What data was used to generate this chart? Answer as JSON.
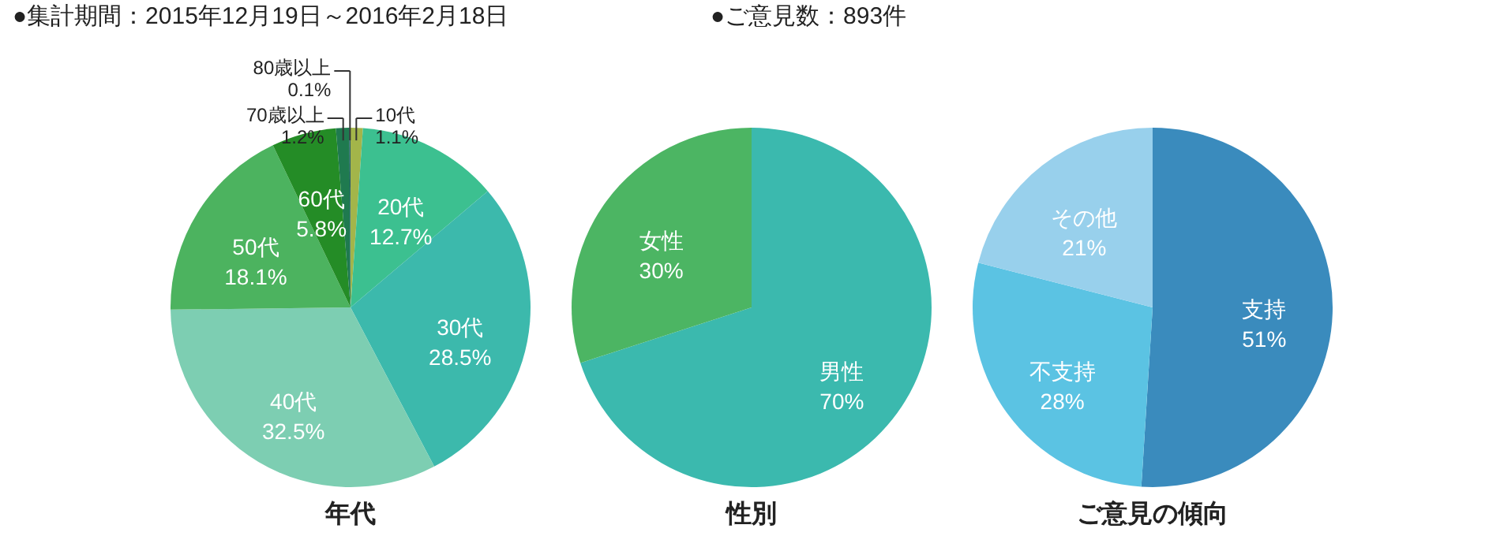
{
  "chart_data": [
    {
      "type": "pie",
      "title": "年代",
      "annotations": [
        "●集計期間：2015年12月19日～2016年2月18日",
        "●ご意見数：893件"
      ],
      "categories": [
        "10代",
        "20代",
        "30代",
        "40代",
        "50代",
        "60代",
        "70歳以上",
        "80歳以上"
      ],
      "values": [
        1.1,
        12.7,
        28.5,
        32.5,
        18.1,
        5.8,
        1.2,
        0.1
      ],
      "value_labels": [
        "1.1%",
        "12.7%",
        "28.5%",
        "32.5%",
        "18.1%",
        "5.8%",
        "1.2%",
        "0.1%"
      ],
      "colors": [
        "#a3b54a",
        "#3cc090",
        "#3cb9ac",
        "#7dceb2",
        "#4cb35f",
        "#248c26",
        "#1f7a4f",
        "#2b5a6e"
      ]
    },
    {
      "type": "pie",
      "title": "性別",
      "categories": [
        "男性",
        "女性"
      ],
      "values": [
        70,
        30
      ],
      "value_labels": [
        "70%",
        "30%"
      ],
      "colors": [
        "#3bb9ae",
        "#4cb563"
      ]
    },
    {
      "type": "pie",
      "title": "ご意見の傾向",
      "categories": [
        "支持",
        "不支持",
        "その他"
      ],
      "values": [
        51,
        28,
        21
      ],
      "value_labels": [
        "51%",
        "28%",
        "21%"
      ],
      "colors": [
        "#3a8bbd",
        "#5bc3e3",
        "#98d0ec"
      ]
    }
  ]
}
